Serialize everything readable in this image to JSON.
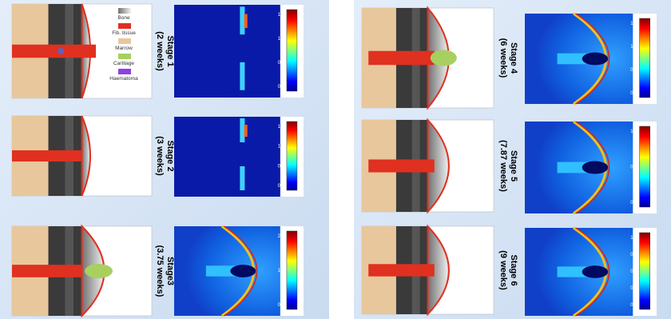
{
  "legend": [
    "Bone",
    "Fib. tissue",
    "Marrow",
    "Cartilage",
    "Haematoma"
  ],
  "panels": [
    {
      "stage": "Stage 1",
      "time": "(2 weeks)",
      "colorbar": [
        "1.4",
        "1.0",
        "0.6",
        "0.2"
      ]
    },
    {
      "stage": "Stage 2",
      "time": "(3 weeks)",
      "colorbar": [
        "1.4",
        "1.0",
        "0.6",
        "0.2"
      ]
    },
    {
      "stage": "Stage3",
      "time": "(3.75 weeks)",
      "colorbar": [
        "2.5",
        "1.5",
        "0.5"
      ]
    },
    {
      "stage": "Stage 4",
      "time": "(6 weeks)",
      "colorbar": [
        "1.6",
        "1.2",
        "0.8",
        "0.4"
      ]
    },
    {
      "stage": "Stage 5",
      "time": "(7.87 weeks)",
      "colorbar": [
        "1.2",
        "0.8",
        "0.4"
      ]
    },
    {
      "stage": "Stage 6",
      "time": "(9 weeks)",
      "colorbar": [
        "1.0",
        "0.8",
        "0.6",
        "0.4",
        "0.2"
      ]
    }
  ]
}
